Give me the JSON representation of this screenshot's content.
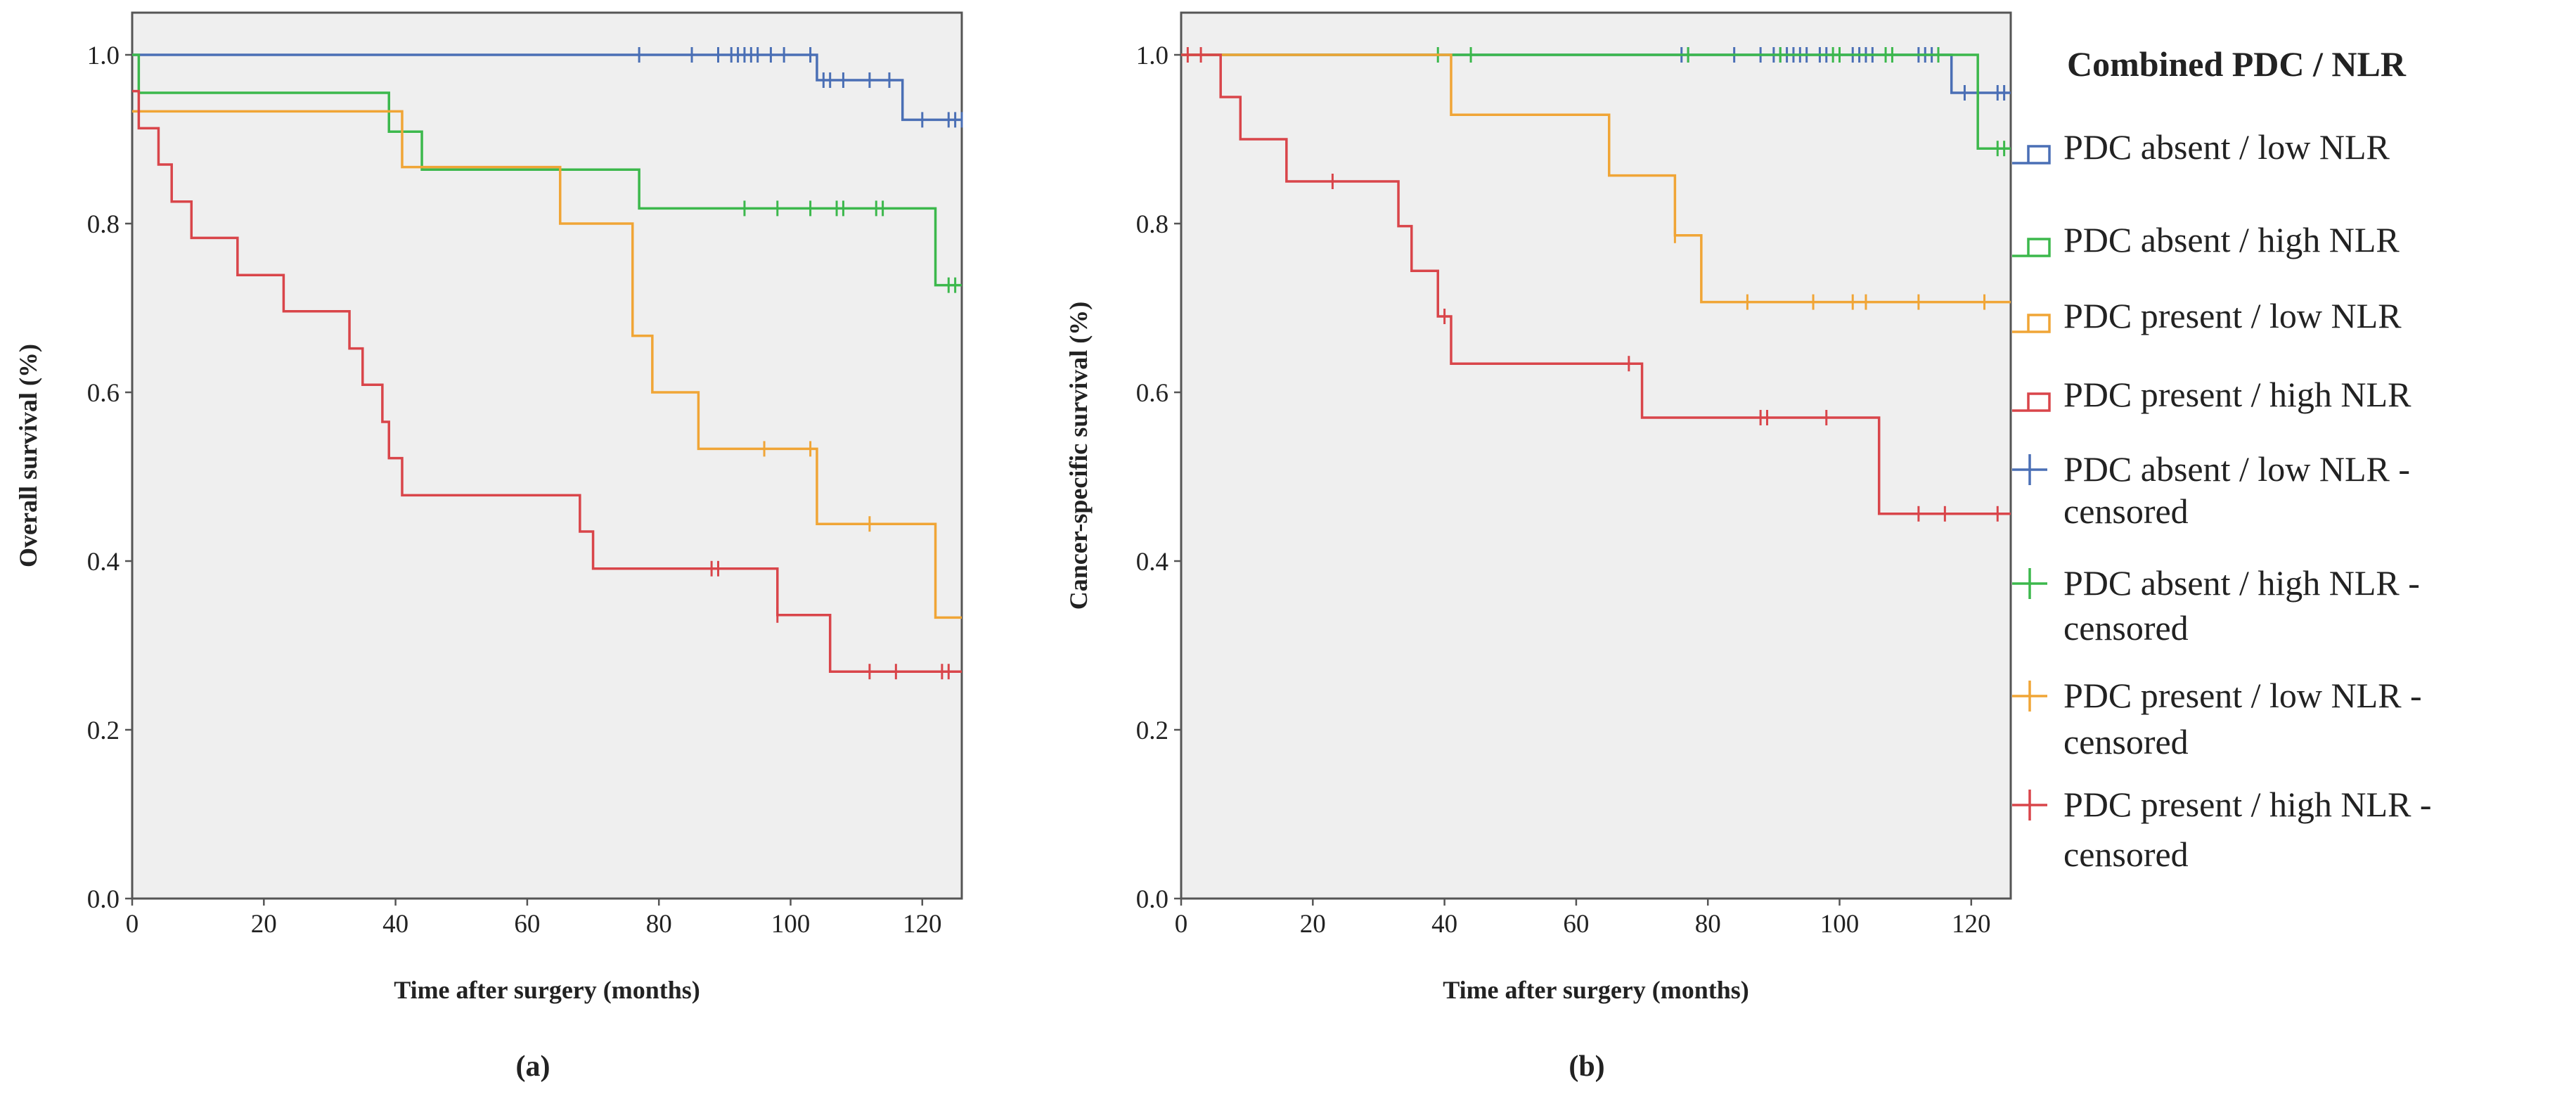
{
  "figure": {
    "panels": [
      {
        "label": "(a)"
      },
      {
        "label": "(b)"
      }
    ],
    "legend": {
      "title": "Combined PDC / NLR",
      "entries": [
        {
          "key": "g1",
          "kind": "line",
          "label": "PDC absent / low NLR"
        },
        {
          "key": "g2",
          "kind": "line",
          "label": "PDC absent / high NLR"
        },
        {
          "key": "g3",
          "kind": "line",
          "label": "PDC present / low NLR"
        },
        {
          "key": "g4",
          "kind": "line",
          "label": "PDC present / high NLR"
        },
        {
          "key": "g1",
          "kind": "censor",
          "label": "PDC absent / low NLR -",
          "label2": "censored"
        },
        {
          "key": "g2",
          "kind": "censor",
          "label": "PDC absent / high NLR -",
          "label2": "censored"
        },
        {
          "key": "g3",
          "kind": "censor",
          "label": "PDC present / low NLR -",
          "label2": "censored"
        },
        {
          "key": "g4",
          "kind": "censor",
          "label": "PDC present / high NLR -",
          "label2": "censored"
        }
      ]
    }
  },
  "chart_data": [
    {
      "type": "line",
      "subtype": "kaplan-meier",
      "panel": "(a)",
      "xlabel": "Time after surgery (months)",
      "ylabel": "Overall survival (%)",
      "xlim": [
        0,
        126
      ],
      "ylim": [
        0,
        1.05
      ],
      "xticks": [
        0,
        20,
        40,
        60,
        80,
        100,
        120
      ],
      "yticks": [
        0.0,
        0.2,
        0.4,
        0.6,
        0.8,
        1.0
      ],
      "series": [
        {
          "key": "g1",
          "color": "#4a6fb5",
          "steps": [
            [
              0,
              1.0
            ],
            [
              104,
              0.97
            ],
            [
              117,
              0.923
            ]
          ],
          "end": 126,
          "censored": [
            [
              77,
              1.0
            ],
            [
              85,
              1.0
            ],
            [
              89,
              1.0
            ],
            [
              91,
              1.0
            ],
            [
              92,
              1.0
            ],
            [
              93,
              1.0
            ],
            [
              94,
              1.0
            ],
            [
              95,
              1.0
            ],
            [
              97,
              1.0
            ],
            [
              99,
              1.0
            ],
            [
              103,
              1.0
            ],
            [
              105,
              0.97
            ],
            [
              106,
              0.97
            ],
            [
              108,
              0.97
            ],
            [
              112,
              0.97
            ],
            [
              115,
              0.97
            ],
            [
              120,
              0.923
            ],
            [
              124,
              0.923
            ],
            [
              125,
              0.923
            ],
            [
              126,
              0.923
            ]
          ]
        },
        {
          "key": "g2",
          "color": "#3cb84c",
          "steps": [
            [
              0,
              1.0
            ],
            [
              1,
              0.955
            ],
            [
              39,
              0.909
            ],
            [
              44,
              0.864
            ],
            [
              77,
              0.818
            ],
            [
              122,
              0.727
            ]
          ],
          "end": 126,
          "censored": [
            [
              93,
              0.818
            ],
            [
              98,
              0.818
            ],
            [
              103,
              0.818
            ],
            [
              107,
              0.818
            ],
            [
              108,
              0.818
            ],
            [
              113,
              0.818
            ],
            [
              114,
              0.818
            ],
            [
              124,
              0.727
            ],
            [
              125,
              0.727
            ]
          ]
        },
        {
          "key": "g3",
          "color": "#f0a536",
          "steps": [
            [
              0,
              0.933
            ],
            [
              41,
              0.867
            ],
            [
              65,
              0.8
            ],
            [
              76,
              0.667
            ],
            [
              79,
              0.6
            ],
            [
              86,
              0.533
            ],
            [
              104,
              0.444
            ],
            [
              122,
              0.333
            ]
          ],
          "end": 126,
          "censored": [
            [
              96,
              0.533
            ],
            [
              103,
              0.533
            ],
            [
              112,
              0.444
            ]
          ]
        },
        {
          "key": "g4",
          "color": "#d9454a",
          "steps": [
            [
              0,
              0.957
            ],
            [
              1,
              0.913
            ],
            [
              4,
              0.87
            ],
            [
              6,
              0.826
            ],
            [
              9,
              0.783
            ],
            [
              16,
              0.739
            ],
            [
              23,
              0.696
            ],
            [
              33,
              0.652
            ],
            [
              35,
              0.609
            ],
            [
              38,
              0.565
            ],
            [
              39,
              0.522
            ],
            [
              41,
              0.478
            ],
            [
              68,
              0.435
            ],
            [
              70,
              0.391
            ],
            [
              98,
              0.336
            ],
            [
              106,
              0.269
            ]
          ],
          "end": 126,
          "censored": [
            [
              88,
              0.391
            ],
            [
              89,
              0.391
            ],
            [
              98,
              0.336
            ],
            [
              112,
              0.269
            ],
            [
              116,
              0.269
            ],
            [
              123,
              0.269
            ],
            [
              124,
              0.269
            ]
          ]
        }
      ]
    },
    {
      "type": "line",
      "subtype": "kaplan-meier",
      "panel": "(b)",
      "xlabel": "Time after surgery (months)",
      "ylabel": "Cancer-specific survival (%)",
      "xlim": [
        0,
        126
      ],
      "ylim": [
        0,
        1.05
      ],
      "xticks": [
        0,
        20,
        40,
        60,
        80,
        100,
        120
      ],
      "yticks": [
        0.0,
        0.2,
        0.4,
        0.6,
        0.8,
        1.0
      ],
      "series": [
        {
          "key": "g1",
          "color": "#4a6fb5",
          "steps": [
            [
              0,
              1.0
            ],
            [
              117,
              0.955
            ]
          ],
          "end": 126,
          "censored": [
            [
              76,
              1.0
            ],
            [
              77,
              1.0
            ],
            [
              84,
              1.0
            ],
            [
              88,
              1.0
            ],
            [
              90,
              1.0
            ],
            [
              91,
              1.0
            ],
            [
              92,
              1.0
            ],
            [
              93,
              1.0
            ],
            [
              94,
              1.0
            ],
            [
              95,
              1.0
            ],
            [
              97,
              1.0
            ],
            [
              98,
              1.0
            ],
            [
              100,
              1.0
            ],
            [
              102,
              1.0
            ],
            [
              103,
              1.0
            ],
            [
              104,
              1.0
            ],
            [
              105,
              1.0
            ],
            [
              112,
              1.0
            ],
            [
              113,
              1.0
            ],
            [
              114,
              1.0
            ],
            [
              119,
              0.955
            ],
            [
              121,
              0.955
            ],
            [
              124,
              0.955
            ],
            [
              125,
              0.955
            ]
          ]
        },
        {
          "key": "g2",
          "color": "#3cb84c",
          "steps": [
            [
              0,
              1.0
            ],
            [
              121,
              0.889
            ]
          ],
          "end": 126,
          "censored": [
            [
              39,
              1.0
            ],
            [
              44,
              1.0
            ],
            [
              77,
              1.0
            ],
            [
              91,
              1.0
            ],
            [
              99,
              1.0
            ],
            [
              100,
              1.0
            ],
            [
              107,
              1.0
            ],
            [
              108,
              1.0
            ],
            [
              115,
              1.0
            ],
            [
              124,
              0.889
            ],
            [
              125,
              0.889
            ]
          ]
        },
        {
          "key": "g3",
          "color": "#f0a536",
          "steps": [
            [
              0,
              1.0
            ],
            [
              41,
              0.929
            ],
            [
              65,
              0.857
            ],
            [
              75,
              0.786
            ],
            [
              79,
              0.707
            ]
          ],
          "end": 126,
          "censored": [
            [
              75,
              0.786
            ],
            [
              86,
              0.707
            ],
            [
              96,
              0.707
            ],
            [
              102,
              0.707
            ],
            [
              104,
              0.707
            ],
            [
              112,
              0.707
            ],
            [
              122,
              0.707
            ]
          ]
        },
        {
          "key": "g4",
          "color": "#d9454a",
          "steps": [
            [
              0,
              1.0
            ],
            [
              6,
              0.95
            ],
            [
              9,
              0.9
            ],
            [
              16,
              0.85
            ],
            [
              33,
              0.797
            ],
            [
              35,
              0.744
            ],
            [
              39,
              0.69
            ],
            [
              41,
              0.634
            ],
            [
              70,
              0.57
            ],
            [
              106,
              0.456
            ]
          ],
          "end": 126,
          "censored": [
            [
              1,
              1.0
            ],
            [
              3,
              1.0
            ],
            [
              23,
              0.85
            ],
            [
              40,
              0.69
            ],
            [
              68,
              0.634
            ],
            [
              88,
              0.57
            ],
            [
              89,
              0.57
            ],
            [
              98,
              0.57
            ],
            [
              112,
              0.456
            ],
            [
              116,
              0.456
            ],
            [
              124,
              0.456
            ]
          ]
        }
      ]
    }
  ]
}
